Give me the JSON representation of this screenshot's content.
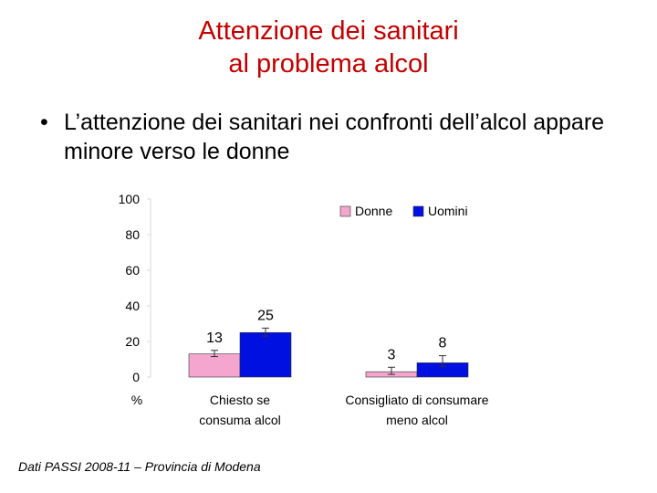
{
  "slide": {
    "title_line1": "Attenzione dei sanitari",
    "title_line2": "al problema alcol",
    "bullet_symbol": "•",
    "bullet_text": "L’attenzione dei sanitari nei confronti dell’alcol appare minore verso le donne",
    "footer": "Dati PASSI 2008-11 – Provincia di Modena"
  },
  "colors": {
    "title": "#c00000",
    "donne": "#f4a6cf",
    "uomini": "#0010e0"
  },
  "chart_data": {
    "type": "bar",
    "ylabel": "%",
    "ylim": [
      0,
      100
    ],
    "yticks": [
      0,
      20,
      40,
      60,
      80,
      100
    ],
    "legend_position": "top-right",
    "categories": [
      {
        "line1": "Chiesto se",
        "line2": "consuma alcol"
      },
      {
        "line1": "Consigliato di consumare",
        "line2": "meno alcol"
      }
    ],
    "series": [
      {
        "name": "Donne",
        "color": "#f4a6cf",
        "values": [
          13,
          3
        ],
        "labels": [
          "13",
          "3"
        ],
        "err_low": [
          11.5,
          1.5
        ],
        "err_high": [
          15,
          5.5
        ]
      },
      {
        "name": "Uomini",
        "color": "#0010e0",
        "values": [
          25,
          8
        ],
        "labels": [
          "25",
          "8"
        ],
        "err_low": [
          23,
          6
        ],
        "err_high": [
          27.5,
          12
        ]
      }
    ]
  }
}
